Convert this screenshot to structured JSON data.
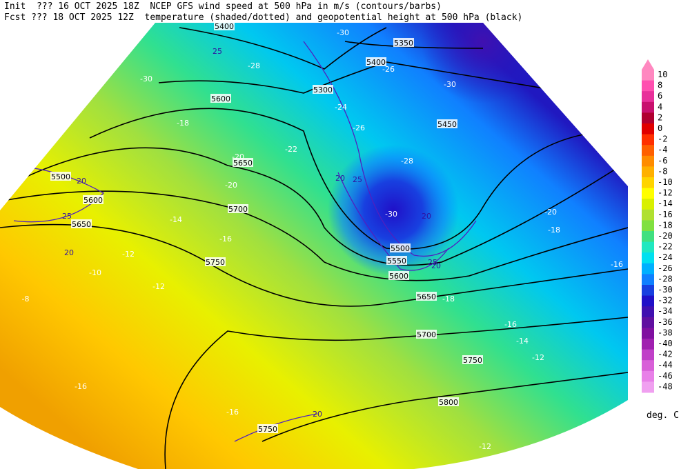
{
  "header": {
    "lines": [
      "Init  ??? 16 OCT 2025 18Z  NCEP GFS wind speed at 500 hPa in m/s (contours/barbs)",
      "Fcst ??? 18 OCT 2025 12Z  temperature (shaded/dotted) and geopotential height at 500 hPa (black)"
    ]
  },
  "map": {
    "height_labels": [
      5400,
      5350,
      5400,
      5300,
      5600,
      5450,
      5650,
      5500,
      5600,
      5700,
      5650,
      5500,
      5550,
      5600,
      5750,
      5650,
      5700,
      5750,
      5800,
      5750
    ],
    "temperature_labels": [
      -30,
      -28,
      -26,
      -30,
      -30,
      -24,
      -26,
      -18,
      -22,
      -28,
      -20,
      -20,
      -30,
      -20,
      -18,
      -16,
      -14,
      -12,
      -10,
      -12,
      -8,
      -18,
      -16,
      -16,
      -14,
      -12,
      -16,
      -16,
      -12
    ],
    "wind_labels": [
      25,
      20,
      25,
      20,
      20,
      25,
      20,
      25,
      20,
      20
    ]
  },
  "legend": {
    "labels": [
      10,
      8,
      6,
      4,
      2,
      0,
      -2,
      -4,
      -6,
      -8,
      -10,
      -12,
      -14,
      -16,
      -18,
      -20,
      -22,
      -24,
      -26,
      -28,
      -30,
      -32,
      -34,
      -36,
      -38,
      -40,
      -42,
      -44,
      -46,
      -48
    ],
    "colors": [
      "#ff88c0",
      "#ff50b0",
      "#e8309a",
      "#c8106e",
      "#b00030",
      "#e00000",
      "#ff3000",
      "#ff6000",
      "#ff8c00",
      "#ffb000",
      "#ffd400",
      "#ffff00",
      "#d8f000",
      "#b0e030",
      "#80e040",
      "#40e080",
      "#20e8c0",
      "#00e0f0",
      "#00b0ff",
      "#1080ff",
      "#1840e0",
      "#2010c8",
      "#4010b0",
      "#6010a0",
      "#8010a0",
      "#a020b0",
      "#c040c8",
      "#d860d8",
      "#e880e8",
      "#f0a0f0"
    ],
    "unit": "deg. C"
  }
}
